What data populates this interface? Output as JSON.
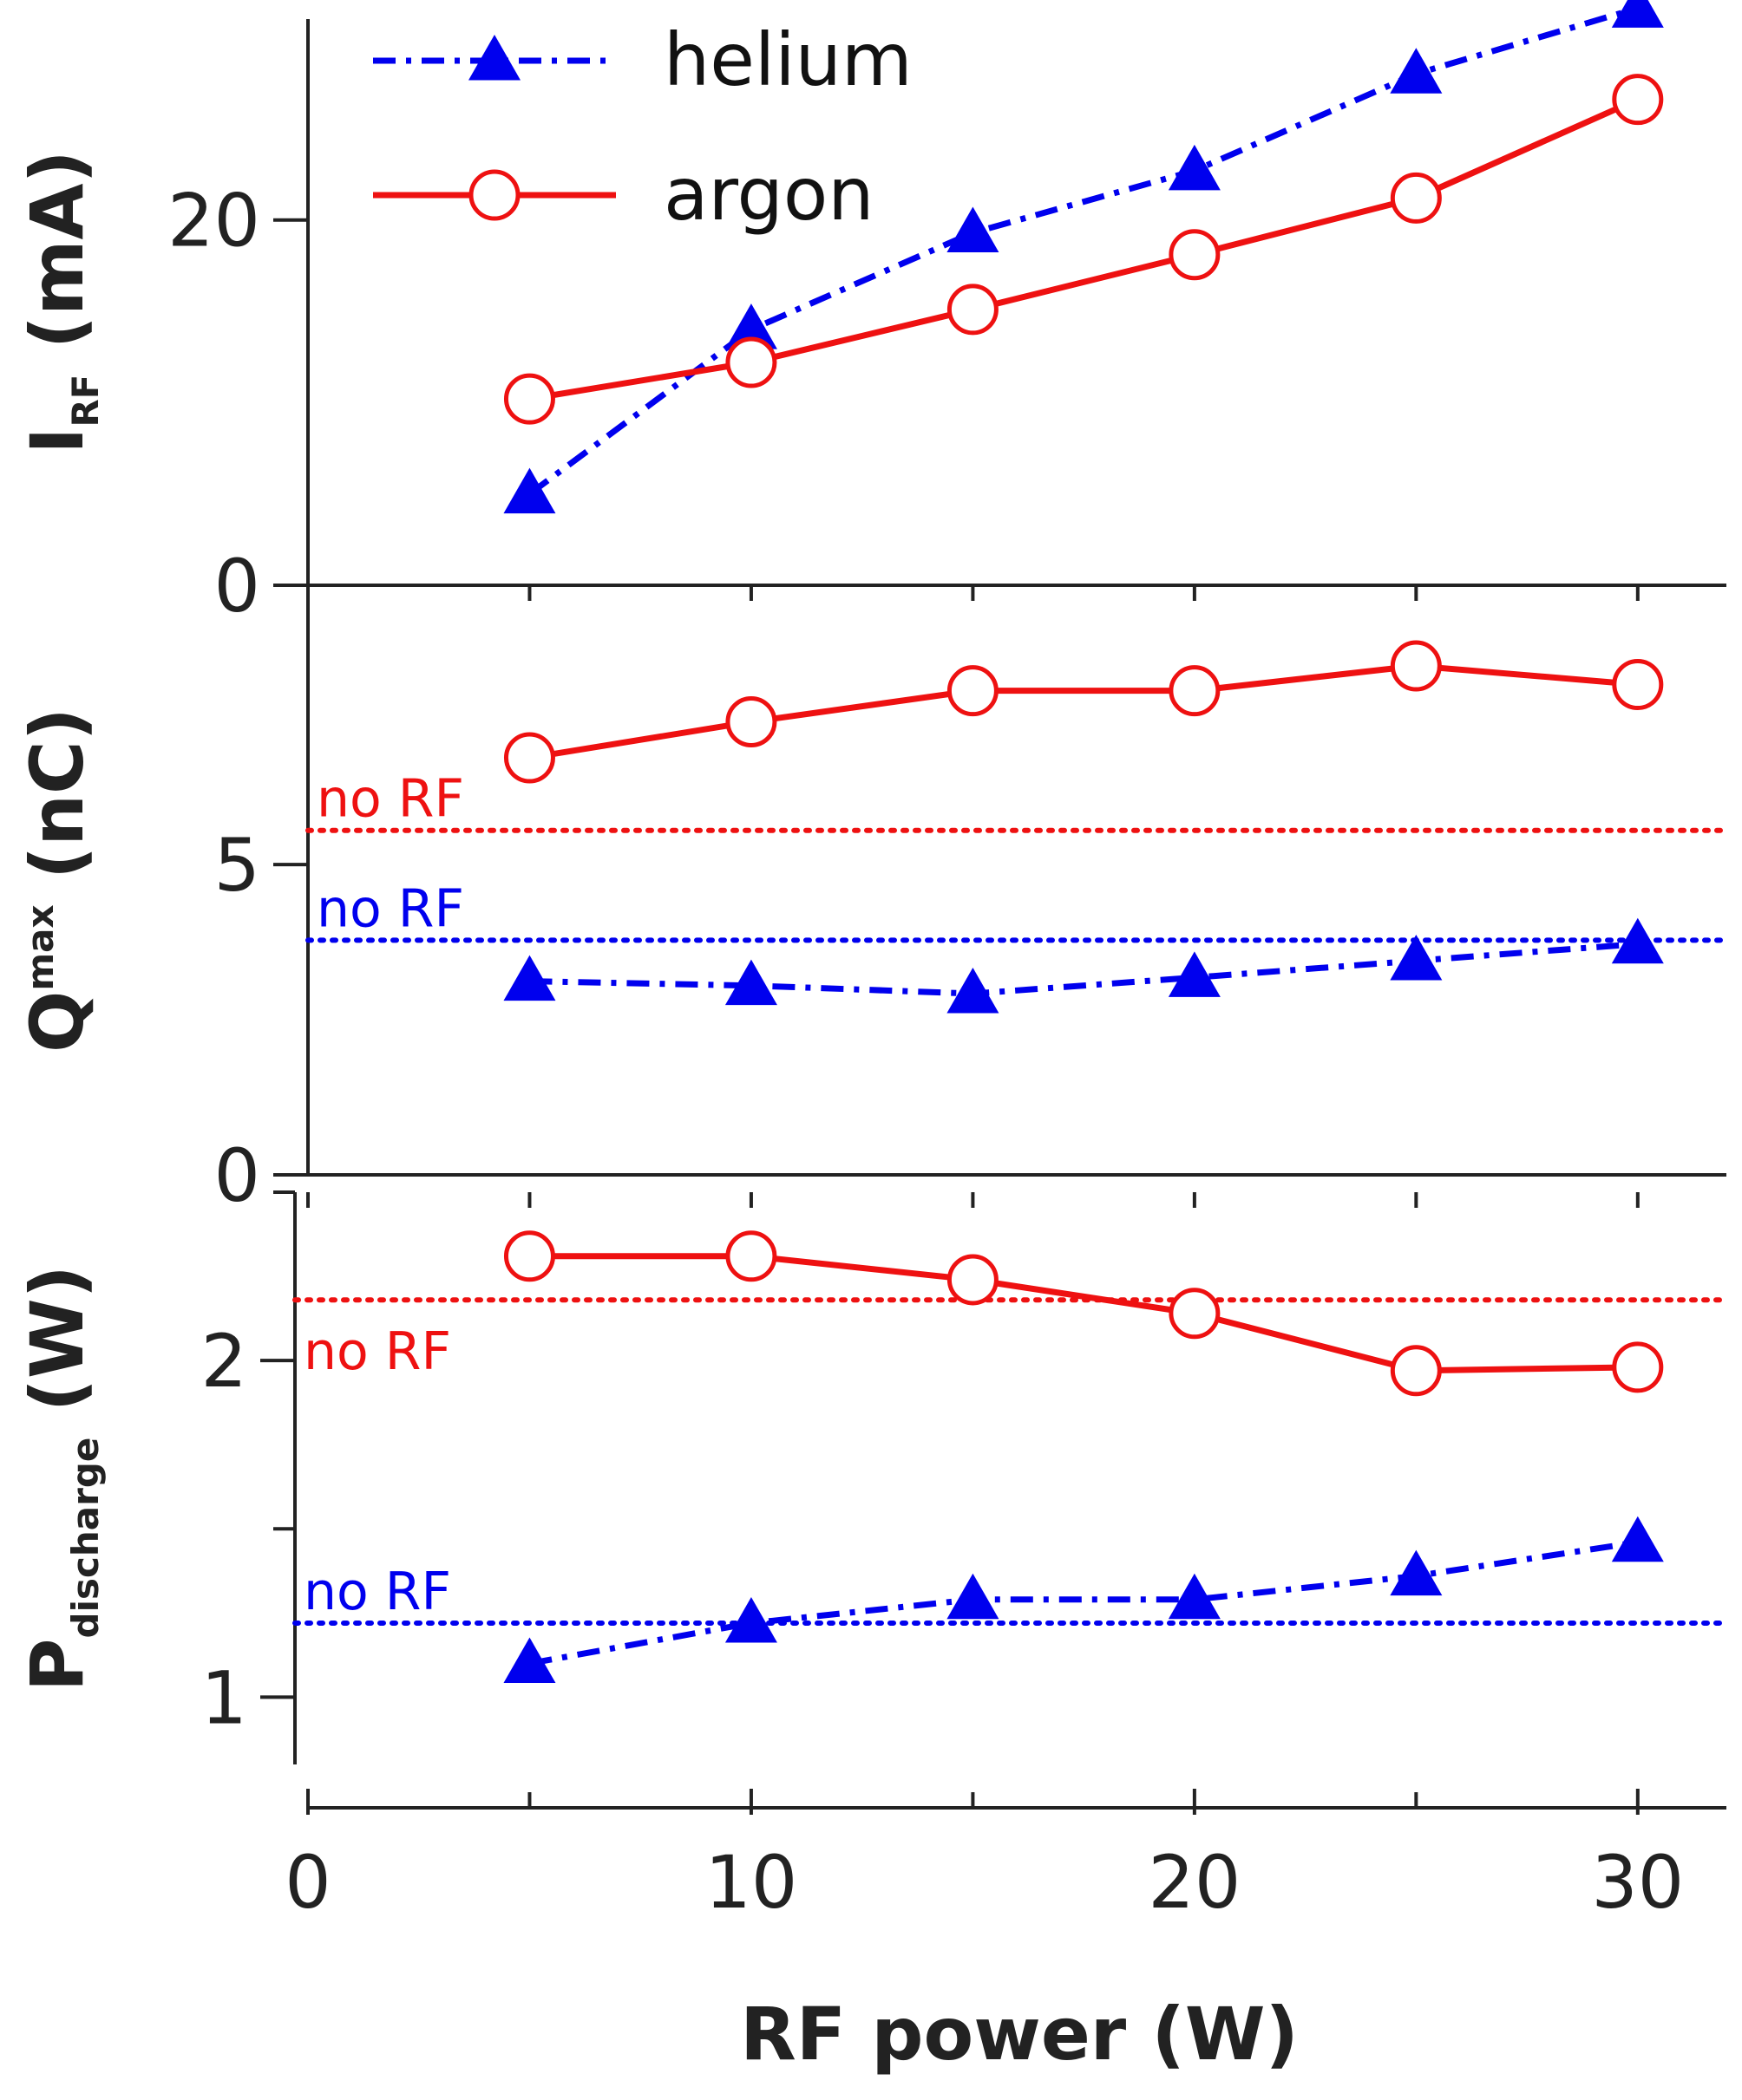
{
  "colors": {
    "helium": "#0000ee",
    "argon": "#ee1111",
    "axis": "#222222"
  },
  "legend": [
    {
      "series": "helium",
      "label": "helium",
      "marker": "filled-triangle",
      "line": "dash-dot"
    },
    {
      "series": "argon",
      "label": "argon",
      "marker": "open-circle",
      "line": "solid"
    }
  ],
  "chart_data": [
    {
      "type": "line",
      "panel": "top",
      "ylabel": {
        "main": "I",
        "sub": "RF",
        "suffix": " (mA)"
      },
      "ylim": [
        0,
        31
      ],
      "yticks": [
        0,
        20
      ],
      "ytick_labels": [
        "0",
        "20"
      ],
      "x": [
        5,
        10,
        15,
        20,
        25,
        30
      ],
      "series": [
        {
          "name": "helium",
          "values": [
            5,
            14,
            19.3,
            22.7,
            28,
            31.6
          ]
        },
        {
          "name": "argon",
          "values": [
            10.2,
            12.2,
            15.1,
            18.1,
            21.2,
            26.6
          ]
        }
      ]
    },
    {
      "type": "line",
      "panel": "middle",
      "ylabel": {
        "main": "Q",
        "sup": "max",
        "suffix": " (nC)"
      },
      "ylim": [
        0,
        9.5
      ],
      "yticks": [
        0,
        5
      ],
      "ytick_labels": [
        "0",
        "5"
      ],
      "x": [
        5,
        10,
        15,
        20,
        25,
        30
      ],
      "series": [
        {
          "name": "helium",
          "values": [
            3.12,
            3.05,
            2.92,
            3.18,
            3.45,
            3.72
          ]
        },
        {
          "name": "argon",
          "values": [
            6.72,
            7.3,
            7.8,
            7.8,
            8.2,
            7.9
          ]
        }
      ],
      "reference_lines": [
        {
          "series": "argon",
          "value": 5.55,
          "label": "no RF"
        },
        {
          "series": "helium",
          "value": 3.78,
          "label": "no RF"
        }
      ]
    },
    {
      "type": "line",
      "panel": "bottom",
      "ylabel": {
        "main": "P",
        "sub": "discharge",
        "suffix": " (W)"
      },
      "ylim": [
        0.8,
        2.5
      ],
      "yticks": [
        1,
        2
      ],
      "ytick_labels": [
        "1",
        "2"
      ],
      "minor_yticks": [
        1.5,
        2.5
      ],
      "x": [
        5,
        10,
        15,
        20,
        25,
        30
      ],
      "series": [
        {
          "name": "helium",
          "values": [
            1.1,
            1.22,
            1.29,
            1.29,
            1.36,
            1.46
          ]
        },
        {
          "name": "argon",
          "values": [
            2.31,
            2.31,
            2.24,
            2.14,
            1.97,
            1.98
          ]
        }
      ],
      "reference_lines": [
        {
          "series": "argon",
          "value": 2.18,
          "label": "no RF"
        },
        {
          "series": "helium",
          "value": 1.22,
          "label": "no RF"
        }
      ]
    }
  ],
  "x_axis": {
    "title": "RF power (W)",
    "xlim": [
      0,
      32
    ],
    "ticks": [
      0,
      10,
      20,
      30
    ],
    "tick_labels": [
      "0",
      "10",
      "20",
      "30"
    ],
    "minor_ticks": [
      5,
      15,
      25
    ]
  }
}
